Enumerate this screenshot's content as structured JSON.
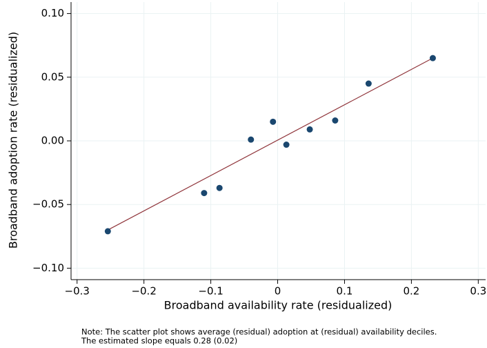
{
  "chart_data": {
    "type": "scatter",
    "x_label": "Broadband availability rate (residualized)",
    "y_label": "Broadband adoption rate (residualized)",
    "x": [
      -0.254,
      -0.11,
      -0.087,
      -0.04,
      -0.007,
      0.013,
      0.048,
      0.086,
      0.136,
      0.232
    ],
    "values": [
      -0.071,
      -0.041,
      -0.037,
      0.001,
      0.015,
      -0.003,
      0.009,
      0.016,
      0.045,
      0.065
    ],
    "color": "#1a476f",
    "fit": {
      "x": [
        -0.254,
        0.232
      ],
      "values": [
        -0.07,
        0.065
      ],
      "color": "#90353b"
    },
    "xlim": [
      -0.309,
      0.311
    ],
    "ylim": [
      -0.109,
      0.109
    ],
    "xticks": [
      {
        "value": -0.3,
        "label": "−0.3"
      },
      {
        "value": -0.2,
        "label": "−0.2"
      },
      {
        "value": -0.1,
        "label": "−0.1"
      },
      0,
      0.1,
      0.2,
      0.3
    ],
    "yticks": [
      {
        "value": -0.1,
        "label": "−0.10"
      },
      {
        "value": -0.05,
        "label": "−0.05"
      },
      {
        "value": 0,
        "label": "0.00"
      },
      {
        "value": 0.05,
        "label": "0.05"
      },
      {
        "value": 0.1,
        "label": "0.10"
      }
    ],
    "grid": true,
    "note": [
      "Note: The scatter plot shows average (residual) adoption at (residual) availability deciles.",
      "The estimated slope equals 0.28 (0.02)"
    ]
  }
}
